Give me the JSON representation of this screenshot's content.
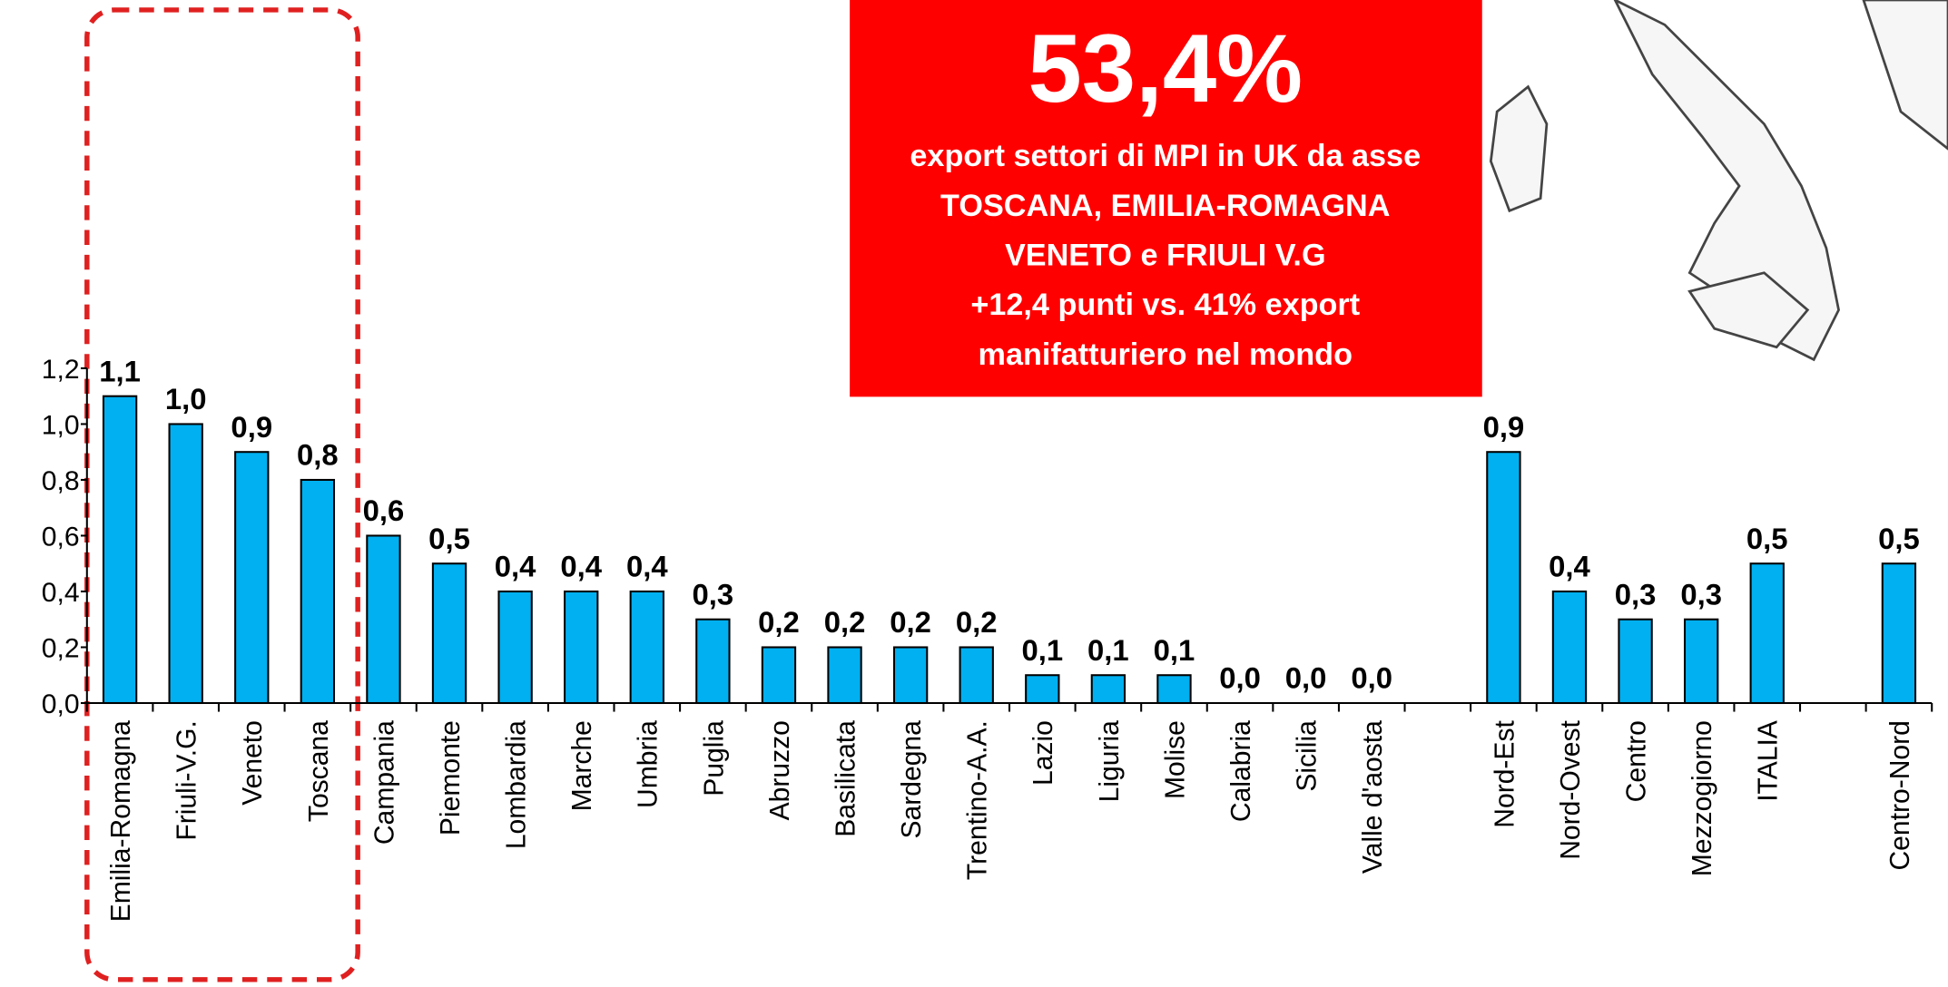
{
  "chart_data": {
    "type": "bar",
    "categories": [
      "Emilia-Romagna",
      "Friuli-V.G.",
      "Veneto",
      "Toscana",
      "Campania",
      "Piemonte",
      "Lombardia",
      "Marche",
      "Umbria",
      "Puglia",
      "Abruzzo",
      "Basilicata",
      "Sardegna",
      "Trentino-A.A.",
      "Lazio",
      "Liguria",
      "Molise",
      "Calabria",
      "Sicilia",
      "Valle d'aosta",
      null,
      "Nord-Est",
      "Nord-Ovest",
      "Centro",
      "Mezzogiorno",
      "ITALIA",
      null,
      "Centro-Nord"
    ],
    "values": [
      1.1,
      1.0,
      0.9,
      0.8,
      0.6,
      0.5,
      0.4,
      0.4,
      0.4,
      0.3,
      0.2,
      0.2,
      0.2,
      0.2,
      0.1,
      0.1,
      0.1,
      0.0,
      0.0,
      0.0,
      null,
      0.9,
      0.4,
      0.3,
      0.3,
      0.5,
      null,
      0.5
    ],
    "value_labels": [
      "1,1",
      "1,0",
      "0,9",
      "0,8",
      "0,6",
      "0,5",
      "0,4",
      "0,4",
      "0,4",
      "0,3",
      "0,2",
      "0,2",
      "0,2",
      "0,2",
      "0,1",
      "0,1",
      "0,1",
      "0,0",
      "0,0",
      "0,0",
      null,
      "0,9",
      "0,4",
      "0,3",
      "0,3",
      "0,5",
      null,
      "0,5"
    ],
    "color": "#00b0f0",
    "ylim": [
      0,
      1.2
    ],
    "yticks": [
      {
        "value": 0,
        "label": "0,0"
      },
      {
        "value": 0.2,
        "label": "0,2"
      },
      {
        "value": 0.4,
        "label": "0,4"
      },
      {
        "value": 0.6,
        "label": "0,6"
      },
      {
        "value": 0.8,
        "label": "0,8"
      },
      {
        "value": 1.0,
        "label": "1,0"
      },
      {
        "value": 1.2,
        "label": "1,2"
      }
    ],
    "annotation": {
      "headline": "53,4%",
      "lines": [
        "export settori di MPI in UK da asse",
        "TOSCANA, EMILIA-ROMAGNA",
        "VENETO e FRIULI V.G",
        "+12,4 punti vs. 41% export",
        "manifatturiero nel mondo"
      ]
    }
  }
}
